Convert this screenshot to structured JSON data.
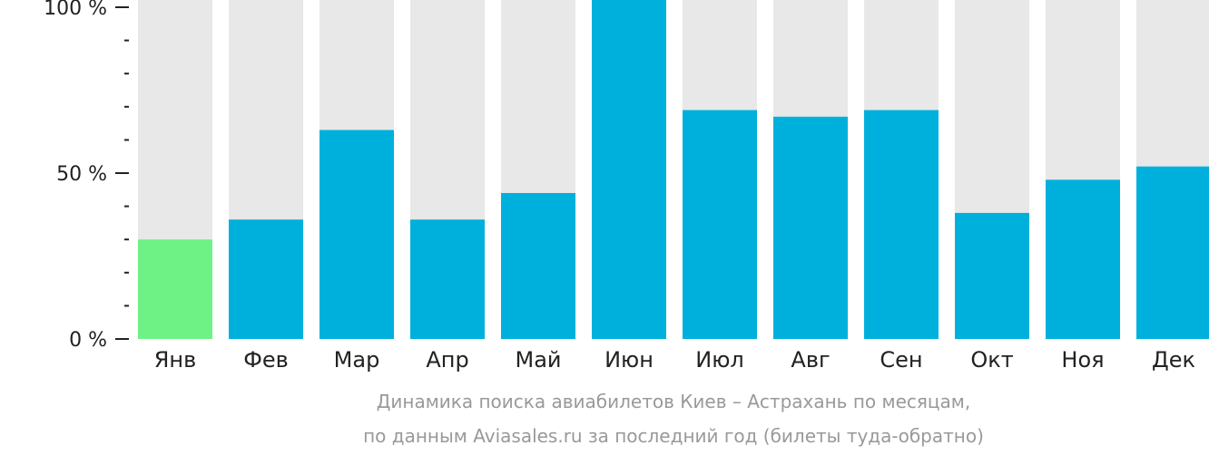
{
  "chart_data": {
    "type": "bar",
    "categories": [
      "Янв",
      "Фев",
      "Мар",
      "Апр",
      "Май",
      "Июн",
      "Июл",
      "Авг",
      "Сен",
      "Окт",
      "Ноя",
      "Дек"
    ],
    "values": [
      30,
      36,
      63,
      36,
      44,
      100,
      69,
      67,
      69,
      38,
      48,
      52
    ],
    "ylim": [
      0,
      100
    ],
    "yticks": [
      "0 %",
      "50 %",
      "100 %"
    ],
    "caption_line1": "Динамика поиска авиабилетов Киев – Астрахань по месяцам,",
    "caption_line2": "по данным Aviasales.ru за последний год (билеты туда-обратно)",
    "colors": {
      "bar": "#00b0dc",
      "highlight": "#6ef286",
      "background_bar": "#e8e8e8",
      "axis": "#222222",
      "caption": "#999999"
    },
    "highlight_index": 0
  }
}
